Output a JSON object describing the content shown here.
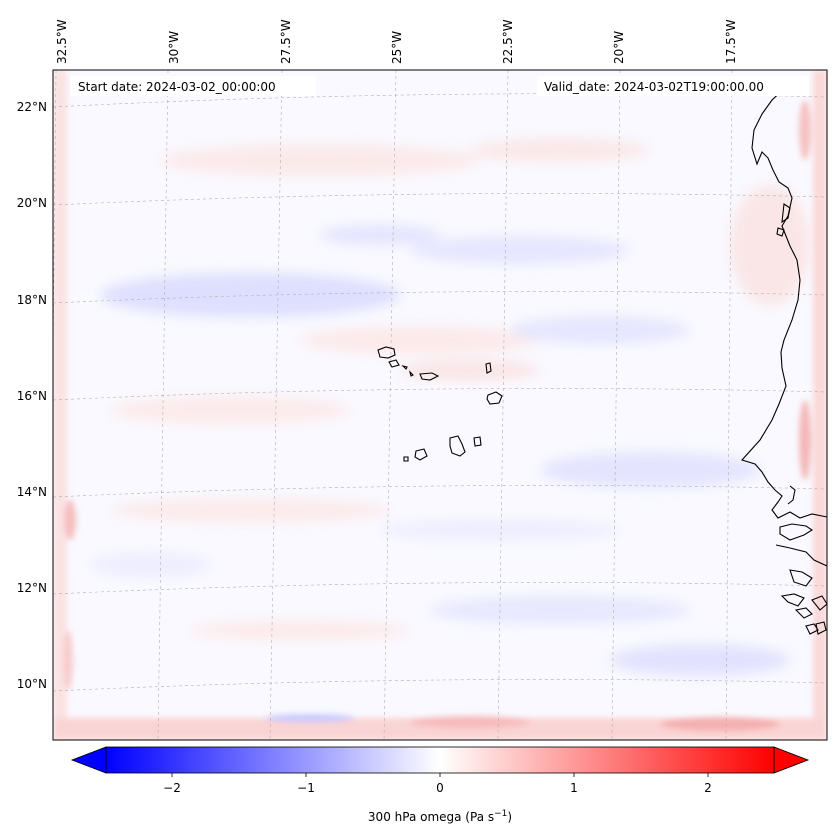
{
  "header": {
    "start_date": "Start date: 2024-03-02_00:00:00",
    "valid_date": "Valid_date: 2024-03-02T19:00:00.00"
  },
  "map": {
    "lon_labels": [
      "32.5°W",
      "30°W",
      "27.5°W",
      "25°W",
      "22.5°W",
      "20°W",
      "17.5°W"
    ],
    "lat_labels": [
      "22°N",
      "20°N",
      "18°N",
      "16°N",
      "14°N",
      "12°N",
      "10°N"
    ],
    "gridlines": "dashed",
    "field_colors": {
      "negative": "#0000ff",
      "neutral": "#ffffff",
      "positive": "#ff0000"
    }
  },
  "colorbar": {
    "ticks": [
      "−2",
      "−1",
      "0",
      "1",
      "2"
    ],
    "label_main": "300 hPa omega (Pa s",
    "label_exp": "−1",
    "label_end": ")",
    "extend": "both",
    "colormap": "bwr"
  }
}
